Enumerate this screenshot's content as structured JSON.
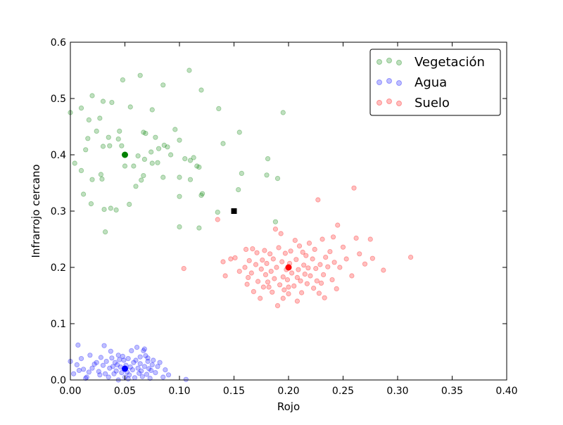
{
  "chart_data": {
    "type": "scatter",
    "xlabel": "Rojo",
    "ylabel": "Infrarrojo cercano",
    "xlim": [
      0.0,
      0.4
    ],
    "ylim": [
      0.0,
      0.6
    ],
    "x_ticks": [
      "0.00",
      "0.05",
      "0.10",
      "0.15",
      "0.20",
      "0.25",
      "0.30",
      "0.35",
      "0.40"
    ],
    "y_ticks": [
      "0.0",
      "0.1",
      "0.2",
      "0.3",
      "0.4",
      "0.5",
      "0.6"
    ],
    "grid": false,
    "legend_position": "top-right",
    "series": [
      {
        "name": "Vegetación",
        "color": "#008000",
        "alpha": 0.25,
        "points": [
          [
            0.0,
            0.475
          ],
          [
            0.01,
            0.483
          ],
          [
            0.02,
            0.505
          ],
          [
            0.03,
            0.495
          ],
          [
            0.038,
            0.493
          ],
          [
            0.055,
            0.485
          ],
          [
            0.048,
            0.533
          ],
          [
            0.064,
            0.541
          ],
          [
            0.085,
            0.524
          ],
          [
            0.109,
            0.55
          ],
          [
            0.12,
            0.515
          ],
          [
            0.017,
            0.462
          ],
          [
            0.027,
            0.465
          ],
          [
            0.004,
            0.385
          ],
          [
            0.01,
            0.372
          ],
          [
            0.014,
            0.409
          ],
          [
            0.016,
            0.429
          ],
          [
            0.024,
            0.442
          ],
          [
            0.03,
            0.415
          ],
          [
            0.035,
            0.431
          ],
          [
            0.036,
            0.416
          ],
          [
            0.044,
            0.428
          ],
          [
            0.045,
            0.442
          ],
          [
            0.047,
            0.416
          ],
          [
            0.05,
            0.38
          ],
          [
            0.058,
            0.38
          ],
          [
            0.067,
            0.44
          ],
          [
            0.069,
            0.438
          ],
          [
            0.074,
            0.405
          ],
          [
            0.075,
            0.48
          ],
          [
            0.078,
            0.431
          ],
          [
            0.081,
            0.411
          ],
          [
            0.086,
            0.417
          ],
          [
            0.089,
            0.414
          ],
          [
            0.092,
            0.4
          ],
          [
            0.096,
            0.445
          ],
          [
            0.1,
            0.426
          ],
          [
            0.105,
            0.393
          ],
          [
            0.11,
            0.39
          ],
          [
            0.113,
            0.395
          ],
          [
            0.116,
            0.38
          ],
          [
            0.118,
            0.378
          ],
          [
            0.136,
            0.482
          ],
          [
            0.14,
            0.42
          ],
          [
            0.155,
            0.44
          ],
          [
            0.062,
            0.398
          ],
          [
            0.068,
            0.392
          ],
          [
            0.06,
            0.344
          ],
          [
            0.065,
            0.355
          ],
          [
            0.067,
            0.363
          ],
          [
            0.075,
            0.385
          ],
          [
            0.08,
            0.386
          ],
          [
            0.085,
            0.36
          ],
          [
            0.1,
            0.36
          ],
          [
            0.11,
            0.356
          ],
          [
            0.012,
            0.33
          ],
          [
            0.019,
            0.313
          ],
          [
            0.028,
            0.365
          ],
          [
            0.029,
            0.357
          ],
          [
            0.02,
            0.356
          ],
          [
            0.031,
            0.303
          ],
          [
            0.037,
            0.305
          ],
          [
            0.042,
            0.302
          ],
          [
            0.054,
            0.312
          ],
          [
            0.032,
            0.263
          ],
          [
            0.1,
            0.326
          ],
          [
            0.12,
            0.328
          ],
          [
            0.121,
            0.331
          ],
          [
            0.1,
            0.272
          ],
          [
            0.118,
            0.27
          ],
          [
            0.135,
            0.298
          ],
          [
            0.154,
            0.338
          ],
          [
            0.157,
            0.367
          ],
          [
            0.181,
            0.393
          ],
          [
            0.18,
            0.364
          ],
          [
            0.19,
            0.358
          ],
          [
            0.188,
            0.281
          ],
          [
            0.195,
            0.475
          ]
        ]
      },
      {
        "name": "Agua",
        "color": "#0000ff",
        "alpha": 0.25,
        "points": [
          [
            0.0,
            0.033
          ],
          [
            0.003,
            0.011
          ],
          [
            0.006,
            0.027
          ],
          [
            0.007,
            0.062
          ],
          [
            0.008,
            0.017
          ],
          [
            0.012,
            0.019
          ],
          [
            0.014,
            0.003
          ],
          [
            0.017,
            0.014
          ],
          [
            0.018,
            0.044
          ],
          [
            0.02,
            0.021
          ],
          [
            0.022,
            0.028
          ],
          [
            0.024,
            0.031
          ],
          [
            0.026,
            0.015
          ],
          [
            0.027,
            0.009
          ],
          [
            0.028,
            0.04
          ],
          [
            0.03,
            0.026
          ],
          [
            0.031,
            0.061
          ],
          [
            0.032,
            0.011
          ],
          [
            0.033,
            0.033
          ],
          [
            0.035,
            0.005
          ],
          [
            0.036,
            0.021
          ],
          [
            0.038,
            0.039
          ],
          [
            0.039,
            0.024
          ],
          [
            0.04,
            0.011
          ],
          [
            0.041,
            0.031
          ],
          [
            0.042,
            0.016
          ],
          [
            0.043,
            0.027
          ],
          [
            0.044,
            0.0
          ],
          [
            0.045,
            0.036
          ],
          [
            0.046,
            0.023
          ],
          [
            0.047,
            0.013
          ],
          [
            0.048,
            0.042
          ],
          [
            0.049,
            0.035
          ],
          [
            0.05,
            0.005
          ],
          [
            0.051,
            0.026
          ],
          [
            0.052,
            0.014
          ],
          [
            0.053,
            0.038
          ],
          [
            0.054,
            0.009
          ],
          [
            0.055,
            0.023
          ],
          [
            0.056,
            0.052
          ],
          [
            0.057,
            0.018
          ],
          [
            0.058,
            0.031
          ],
          [
            0.059,
            0.004
          ],
          [
            0.06,
            0.035
          ],
          [
            0.061,
            0.058
          ],
          [
            0.062,
            0.021
          ],
          [
            0.063,
            0.012
          ],
          [
            0.064,
            0.029
          ],
          [
            0.065,
            0.016
          ],
          [
            0.066,
            0.006
          ],
          [
            0.067,
            0.052
          ],
          [
            0.068,
            0.024
          ],
          [
            0.069,
            0.043
          ],
          [
            0.07,
            0.01
          ],
          [
            0.071,
            0.033
          ],
          [
            0.072,
            0.02
          ],
          [
            0.073,
            0.003
          ],
          [
            0.074,
            0.017
          ],
          [
            0.075,
            0.027
          ],
          [
            0.076,
            0.035
          ],
          [
            0.078,
            0.013
          ],
          [
            0.08,
            0.024
          ],
          [
            0.082,
            0.031
          ],
          [
            0.085,
            0.005
          ],
          [
            0.087,
            0.018
          ],
          [
            0.09,
            0.009
          ],
          [
            0.106,
            0.001
          ],
          [
            0.01,
            0.038
          ],
          [
            0.015,
            0.005
          ],
          [
            0.037,
            0.051
          ],
          [
            0.044,
            0.044
          ],
          [
            0.053,
            0.002
          ],
          [
            0.064,
            0.041
          ],
          [
            0.068,
            0.055
          ],
          [
            0.071,
            0.039
          ]
        ]
      },
      {
        "name": "Suelo",
        "color": "#ff0000",
        "alpha": 0.25,
        "points": [
          [
            0.104,
            0.198
          ],
          [
            0.135,
            0.285
          ],
          [
            0.14,
            0.21
          ],
          [
            0.142,
            0.185
          ],
          [
            0.147,
            0.215
          ],
          [
            0.151,
            0.217
          ],
          [
            0.155,
            0.193
          ],
          [
            0.16,
            0.2
          ],
          [
            0.161,
            0.232
          ],
          [
            0.162,
            0.17
          ],
          [
            0.163,
            0.182
          ],
          [
            0.164,
            0.212
          ],
          [
            0.166,
            0.19
          ],
          [
            0.167,
            0.233
          ],
          [
            0.168,
            0.157
          ],
          [
            0.17,
            0.205
          ],
          [
            0.171,
            0.226
          ],
          [
            0.172,
            0.175
          ],
          [
            0.174,
            0.145
          ],
          [
            0.175,
            0.197
          ],
          [
            0.176,
            0.213
          ],
          [
            0.177,
            0.165
          ],
          [
            0.178,
            0.23
          ],
          [
            0.179,
            0.187
          ],
          [
            0.18,
            0.207
          ],
          [
            0.181,
            0.174
          ],
          [
            0.183,
            0.224
          ],
          [
            0.184,
            0.193
          ],
          [
            0.185,
            0.156
          ],
          [
            0.186,
            0.215
          ],
          [
            0.187,
            0.18
          ],
          [
            0.188,
            0.268
          ],
          [
            0.189,
            0.2
          ],
          [
            0.19,
            0.132
          ],
          [
            0.191,
            0.235
          ],
          [
            0.192,
            0.169
          ],
          [
            0.193,
            0.26
          ],
          [
            0.194,
            0.21
          ],
          [
            0.195,
            0.183
          ],
          [
            0.196,
            0.16
          ],
          [
            0.197,
            0.225
          ],
          [
            0.198,
            0.196
          ],
          [
            0.199,
            0.178
          ],
          [
            0.2,
            0.153
          ],
          [
            0.201,
            0.207
          ],
          [
            0.202,
            0.229
          ],
          [
            0.203,
            0.19
          ],
          [
            0.205,
            0.167
          ],
          [
            0.206,
            0.248
          ],
          [
            0.207,
            0.214
          ],
          [
            0.208,
            0.182
          ],
          [
            0.209,
            0.196
          ],
          [
            0.21,
            0.238
          ],
          [
            0.211,
            0.176
          ],
          [
            0.212,
            0.155
          ],
          [
            0.213,
            0.227
          ],
          [
            0.214,
            0.204
          ],
          [
            0.215,
            0.188
          ],
          [
            0.216,
            0.221
          ],
          [
            0.217,
            0.171
          ],
          [
            0.218,
            0.199
          ],
          [
            0.219,
            0.243
          ],
          [
            0.22,
            0.185
          ],
          [
            0.222,
            0.215
          ],
          [
            0.223,
            0.163
          ],
          [
            0.224,
            0.232
          ],
          [
            0.225,
            0.198
          ],
          [
            0.226,
            0.176
          ],
          [
            0.227,
            0.32
          ],
          [
            0.228,
            0.154
          ],
          [
            0.229,
            0.205
          ],
          [
            0.23,
            0.172
          ],
          [
            0.231,
            0.25
          ],
          [
            0.232,
            0.187
          ],
          [
            0.233,
            0.146
          ],
          [
            0.234,
            0.218
          ],
          [
            0.236,
            0.201
          ],
          [
            0.238,
            0.228
          ],
          [
            0.24,
            0.178
          ],
          [
            0.241,
            0.254
          ],
          [
            0.242,
            0.209
          ],
          [
            0.244,
            0.162
          ],
          [
            0.245,
            0.275
          ],
          [
            0.247,
            0.2
          ],
          [
            0.25,
            0.236
          ],
          [
            0.253,
            0.215
          ],
          [
            0.258,
            0.185
          ],
          [
            0.26,
            0.341
          ],
          [
            0.262,
            0.252
          ],
          [
            0.265,
            0.224
          ],
          [
            0.27,
            0.206
          ],
          [
            0.275,
            0.25
          ],
          [
            0.277,
            0.216
          ],
          [
            0.287,
            0.195
          ],
          [
            0.312,
            0.218
          ],
          [
            0.195,
            0.145
          ],
          [
            0.208,
            0.14
          ],
          [
            0.182,
            0.165
          ],
          [
            0.2,
            0.165
          ]
        ]
      }
    ],
    "highlighted_points": [
      {
        "color": "#008000",
        "shape": "circle",
        "x": 0.05,
        "y": 0.4
      },
      {
        "color": "#0000ff",
        "shape": "circle",
        "x": 0.05,
        "y": 0.02
      },
      {
        "color": "#ff0000",
        "shape": "circle",
        "x": 0.2,
        "y": 0.2
      },
      {
        "color": "#000000",
        "shape": "square",
        "x": 0.15,
        "y": 0.3
      }
    ]
  }
}
